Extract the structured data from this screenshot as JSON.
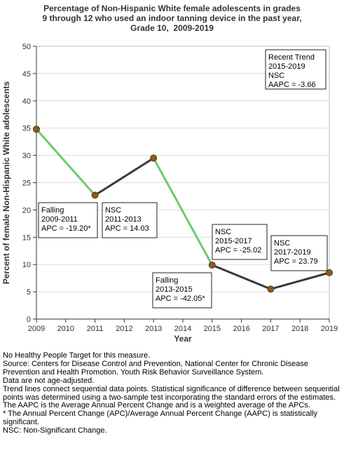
{
  "chart_data": {
    "type": "line",
    "title_lines": [
      "Percentage of Non-Hispanic White female adolescents in grades",
      "9 through 12 who used an indoor tanning device in the past year,",
      "Grade 10,  2009-2019"
    ],
    "xlabel": "Year",
    "ylabel": "Percent of female Non-Hispanic White adolescents",
    "xlim": [
      2009,
      2019
    ],
    "ylim": [
      0,
      50
    ],
    "x_ticks": [
      2009,
      2010,
      2011,
      2012,
      2013,
      2014,
      2015,
      2016,
      2017,
      2018,
      2019
    ],
    "y_ticks": [
      0,
      5,
      10,
      15,
      20,
      25,
      30,
      35,
      40,
      45,
      50
    ],
    "grid": "horizontal",
    "points": [
      {
        "x": 2009,
        "y": 34.8
      },
      {
        "x": 2011,
        "y": 22.7
      },
      {
        "x": 2013,
        "y": 29.5
      },
      {
        "x": 2015,
        "y": 9.9
      },
      {
        "x": 2017,
        "y": 5.5
      },
      {
        "x": 2019,
        "y": 8.5
      }
    ],
    "segments": [
      {
        "from": 2009,
        "to": 2011,
        "significant": true
      },
      {
        "from": 2011,
        "to": 2013,
        "significant": false
      },
      {
        "from": 2013,
        "to": 2015,
        "significant": true
      },
      {
        "from": 2015,
        "to": 2017,
        "significant": false
      },
      {
        "from": 2017,
        "to": 2019,
        "significant": false
      }
    ],
    "annotations": [
      {
        "lines": [
          "Falling",
          "2009-2011",
          "APC = -19.20*"
        ]
      },
      {
        "lines": [
          "NSC",
          "2011-2013",
          "APC = 14.03"
        ]
      },
      {
        "lines": [
          "Falling",
          "2013-2015",
          "APC = -42.05*"
        ]
      },
      {
        "lines": [
          "NSC",
          "2015-2017",
          "APC = -25.02"
        ]
      },
      {
        "lines": [
          "NSC",
          "2017-2019",
          "APC = 23.79"
        ]
      }
    ],
    "recent_trend": {
      "lines": [
        "Recent Trend",
        "2015-2019",
        "NSC",
        "AAPC = -3.66"
      ]
    },
    "colors": {
      "significant_line": "#6ecb6a",
      "nonsignificant_line": "#3a3a3a",
      "marker_fill": "#8b5a1e",
      "marker_stroke": "#5a3a10",
      "grid": "#dcdcdc"
    }
  },
  "notes": [
    "No Healthy People Target for this measure.",
    "Source: Centers for Disease Control and Prevention, National Center for Chronic Disease Prevention and Health Promotion. Youth Risk Behavior Surveillance System.",
    "Data are not age-adjusted.",
    "Trend lines connect sequential data points. Statistical significance of difference between sequential points was determined using a two-sample test incorporating the standard errors of the estimates.",
    "The AAPC is the Average Annual Percent Change and is a weighted average of the APCs.",
    "* The Annual Percent Change (APC)/Average Annual Percent Change (AAPC) is statistically significant.",
    "NSC: Non-Significant Change."
  ]
}
